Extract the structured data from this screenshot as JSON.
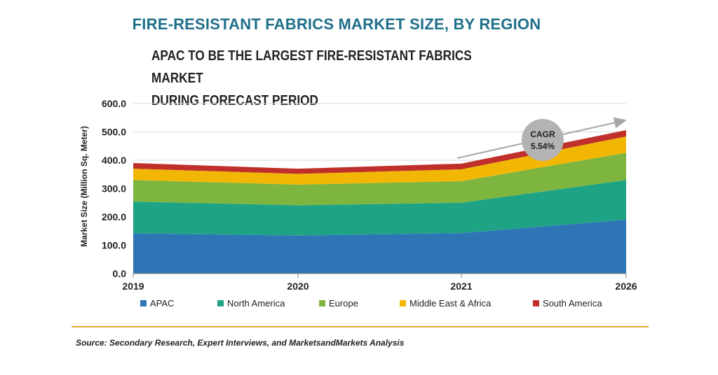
{
  "header": {
    "title": "FIRE-RESISTANT FABRICS MARKET SIZE, BY REGION",
    "subtitle_line1": "APAC TO BE THE LARGEST FIRE-RESISTANT FABRICS MARKET",
    "subtitle_line2": "DURING FORECAST PERIOD"
  },
  "footer": {
    "source": "Source: Secondary Research, Expert Interviews, and MarketsandMarkets Analysis"
  },
  "chart_data": {
    "type": "area",
    "stacked": true,
    "title": "FIRE-RESISTANT FABRICS MARKET SIZE, BY REGION",
    "ylabel": "Market Size (Million Sq. Meter)",
    "xlabel": "",
    "categories": [
      "2019",
      "2020",
      "2021",
      "2026"
    ],
    "ylim": [
      0,
      600
    ],
    "yticks": [
      "0.0",
      "100.0",
      "200.0",
      "300.0",
      "400.0",
      "500.0",
      "600.0"
    ],
    "grid": "horizontal",
    "legend_position": "bottom",
    "series": [
      {
        "name": "APAC",
        "values": [
          142,
          134,
          143,
          190
        ],
        "color": "#2e75b6"
      },
      {
        "name": "North America",
        "values": [
          112,
          107,
          107,
          140
        ],
        "color": "#1fa385"
      },
      {
        "name": "Europe",
        "values": [
          76,
          73,
          76,
          96
        ],
        "color": "#7db53f"
      },
      {
        "name": "Middle East & Africa",
        "values": [
          40,
          38,
          42,
          58
        ],
        "color": "#f2b705"
      },
      {
        "name": "South America",
        "values": [
          20,
          18,
          20,
          22
        ],
        "color": "#c0302b"
      }
    ],
    "annotation": {
      "label_line1": "CAGR",
      "label_line2": "5.54%"
    }
  }
}
